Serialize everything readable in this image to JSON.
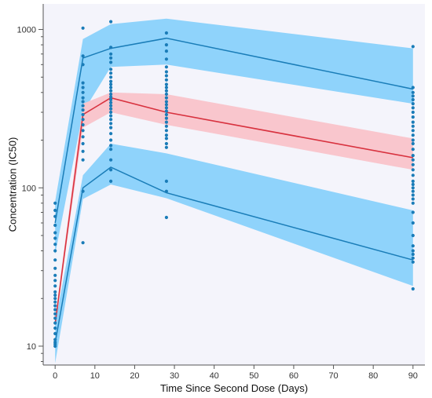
{
  "chart_data": {
    "type": "line",
    "title": "",
    "xlabel": "Time Since Second Dose (Days)",
    "ylabel": "Concentration (IC50)",
    "x_ticks": [
      0,
      10,
      20,
      30,
      40,
      50,
      60,
      70,
      80,
      90
    ],
    "x_tick_labels": [
      "0",
      "10",
      "20",
      "30",
      "40",
      "50",
      "60",
      "70",
      "80",
      "90"
    ],
    "xlim": [
      -3,
      93
    ],
    "y_scale": "log",
    "y_ticks": [
      10,
      100,
      1000
    ],
    "y_tick_labels": [
      "10",
      "100",
      "1000"
    ],
    "ylim": [
      7.6,
      1450
    ],
    "grid": false,
    "colors": {
      "upper_band": "#8fd3fb",
      "lower_band": "#8fd3fb",
      "median_band": "#f9c6cd",
      "percentile_line": "#1a7db8",
      "median_line": "#d8323f",
      "observed_points": "#1a7cb8",
      "background": "#f4f4fb"
    },
    "series": [
      {
        "kind": "band",
        "color_key": "upper_band",
        "x": [
          0,
          7,
          14,
          28,
          90
        ],
        "lower": [
          38,
          300,
          580,
          600,
          340
        ],
        "upper": [
          82,
          870,
          1080,
          1170,
          760
        ]
      },
      {
        "kind": "band",
        "color_key": "lower_band",
        "x": [
          0,
          7,
          14,
          28,
          90
        ],
        "lower": [
          7.8,
          85,
          105,
          86,
          24
        ],
        "upper": [
          14,
          120,
          190,
          165,
          72
        ]
      },
      {
        "kind": "band",
        "color_key": "median_band",
        "x": [
          0,
          7,
          14,
          28,
          90
        ],
        "lower": [
          13.5,
          240,
          300,
          250,
          130
        ],
        "upper": [
          15,
          340,
          400,
          390,
          205
        ]
      },
      {
        "kind": "line",
        "color_key": "percentile_line",
        "x": [
          0,
          7,
          14,
          28,
          90
        ],
        "y": [
          60,
          660,
          760,
          880,
          420
        ]
      },
      {
        "kind": "line",
        "color_key": "percentile_line",
        "x": [
          0,
          7,
          14,
          28,
          90
        ],
        "y": [
          10.5,
          100,
          135,
          93,
          35
        ]
      },
      {
        "kind": "line",
        "color_key": "median_line",
        "x": [
          0,
          7,
          14,
          28,
          90
        ],
        "y": [
          13.8,
          290,
          370,
          300,
          155
        ]
      },
      {
        "kind": "points",
        "color_key": "observed_points",
        "points": [
          [
            0,
            10
          ],
          [
            0,
            10.3
          ],
          [
            0,
            10.6
          ],
          [
            0,
            11
          ],
          [
            0,
            12
          ],
          [
            0,
            13
          ],
          [
            0,
            14
          ],
          [
            0,
            15
          ],
          [
            0,
            16
          ],
          [
            0,
            17
          ],
          [
            0,
            18
          ],
          [
            0,
            19
          ],
          [
            0,
            20
          ],
          [
            0,
            21
          ],
          [
            0,
            22
          ],
          [
            0,
            24
          ],
          [
            0,
            26
          ],
          [
            0,
            28
          ],
          [
            0,
            31
          ],
          [
            0,
            35
          ],
          [
            0,
            40
          ],
          [
            0,
            44
          ],
          [
            0,
            48
          ],
          [
            0,
            52
          ],
          [
            0,
            58
          ],
          [
            0,
            66
          ],
          [
            0,
            72
          ],
          [
            0,
            80
          ],
          [
            7,
            45
          ],
          [
            7,
            95
          ],
          [
            7,
            150
          ],
          [
            7,
            170
          ],
          [
            7,
            190
          ],
          [
            7,
            210
          ],
          [
            7,
            230
          ],
          [
            7,
            250
          ],
          [
            7,
            270
          ],
          [
            7,
            290
          ],
          [
            7,
            310
          ],
          [
            7,
            330
          ],
          [
            7,
            350
          ],
          [
            7,
            370
          ],
          [
            7,
            400
          ],
          [
            7,
            430
          ],
          [
            7,
            460
          ],
          [
            7,
            600
          ],
          [
            7,
            680
          ],
          [
            7,
            1020
          ],
          [
            14,
            110
          ],
          [
            14,
            130
          ],
          [
            14,
            150
          ],
          [
            14,
            175
          ],
          [
            14,
            185
          ],
          [
            14,
            200
          ],
          [
            14,
            220
          ],
          [
            14,
            240
          ],
          [
            14,
            255
          ],
          [
            14,
            270
          ],
          [
            14,
            285
          ],
          [
            14,
            300
          ],
          [
            14,
            315
          ],
          [
            14,
            330
          ],
          [
            14,
            345
          ],
          [
            14,
            360
          ],
          [
            14,
            375
          ],
          [
            14,
            390
          ],
          [
            14,
            410
          ],
          [
            14,
            430
          ],
          [
            14,
            450
          ],
          [
            14,
            470
          ],
          [
            14,
            500
          ],
          [
            14,
            530
          ],
          [
            14,
            560
          ],
          [
            14,
            620
          ],
          [
            14,
            660
          ],
          [
            14,
            700
          ],
          [
            14,
            770
          ],
          [
            14,
            1120
          ],
          [
            28,
            65
          ],
          [
            28,
            95
          ],
          [
            28,
            110
          ],
          [
            28,
            180
          ],
          [
            28,
            190
          ],
          [
            28,
            205
          ],
          [
            28,
            215
          ],
          [
            28,
            230
          ],
          [
            28,
            245
          ],
          [
            28,
            260
          ],
          [
            28,
            275
          ],
          [
            28,
            290
          ],
          [
            28,
            305
          ],
          [
            28,
            320
          ],
          [
            28,
            335
          ],
          [
            28,
            350
          ],
          [
            28,
            370
          ],
          [
            28,
            390
          ],
          [
            28,
            410
          ],
          [
            28,
            430
          ],
          [
            28,
            450
          ],
          [
            28,
            480
          ],
          [
            28,
            510
          ],
          [
            28,
            540
          ],
          [
            28,
            580
          ],
          [
            28,
            650
          ],
          [
            28,
            730
          ],
          [
            28,
            800
          ],
          [
            28,
            950
          ],
          [
            90,
            23
          ],
          [
            90,
            34
          ],
          [
            90,
            36
          ],
          [
            90,
            38
          ],
          [
            90,
            40
          ],
          [
            90,
            43
          ],
          [
            90,
            50
          ],
          [
            90,
            60
          ],
          [
            90,
            70
          ],
          [
            90,
            80
          ],
          [
            90,
            85
          ],
          [
            90,
            90
          ],
          [
            90,
            95
          ],
          [
            90,
            100
          ],
          [
            90,
            105
          ],
          [
            90,
            110
          ],
          [
            90,
            120
          ],
          [
            90,
            130
          ],
          [
            90,
            140
          ],
          [
            90,
            150
          ],
          [
            90,
            160
          ],
          [
            90,
            175
          ],
          [
            90,
            190
          ],
          [
            90,
            200
          ],
          [
            90,
            215
          ],
          [
            90,
            230
          ],
          [
            90,
            245
          ],
          [
            90,
            260
          ],
          [
            90,
            280
          ],
          [
            90,
            300
          ],
          [
            90,
            320
          ],
          [
            90,
            340
          ],
          [
            90,
            360
          ],
          [
            90,
            380
          ],
          [
            90,
            400
          ],
          [
            90,
            430
          ],
          [
            90,
            780
          ]
        ]
      }
    ]
  }
}
